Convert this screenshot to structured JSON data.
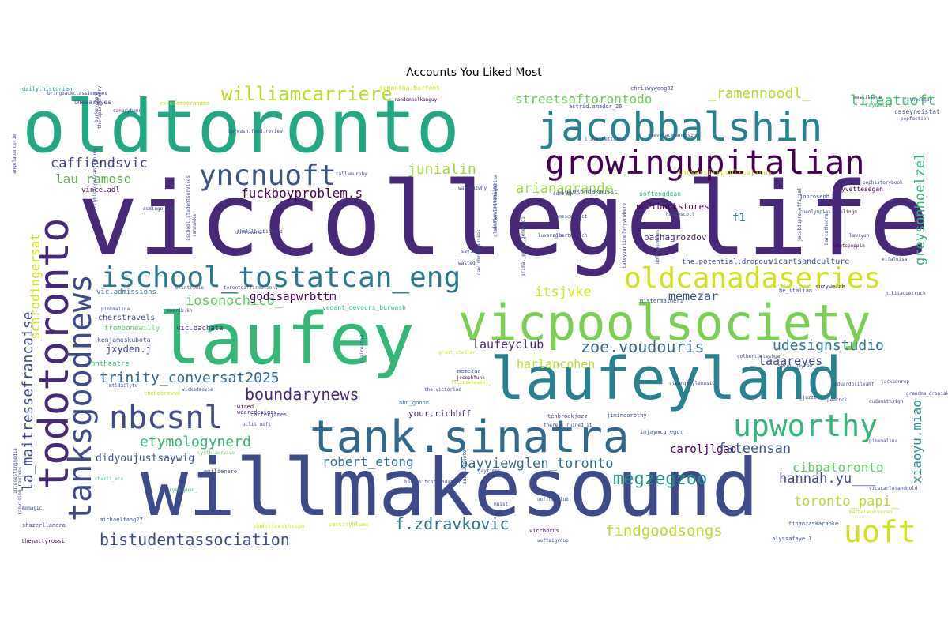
{
  "title": "Accounts You Liked Most",
  "words": [
    {
      "text": "viccollegelife",
      "color": "#482878"
    },
    {
      "text": "willmakesound",
      "color": "#3e4a89"
    },
    {
      "text": "oldtoronto",
      "color": "#22a884"
    },
    {
      "text": "laufey",
      "color": "#35b779"
    },
    {
      "text": "laufeyland",
      "color": "#26828e"
    },
    {
      "text": "vicpoolsociety",
      "color": "#7ad151"
    },
    {
      "text": "todotoronto",
      "color": "#482878"
    },
    {
      "text": "tank.sinatra",
      "color": "#31688e"
    },
    {
      "text": "jacobbalshin",
      "color": "#26828e"
    },
    {
      "text": "growingupitalian",
      "color": "#440154"
    },
    {
      "text": "tanksgoodnews",
      "color": "#3e4a89"
    },
    {
      "text": "nbcsnl",
      "color": "#3e4a89"
    },
    {
      "text": "ischool_tostatcan_eng",
      "color": "#2a788e"
    },
    {
      "text": "oldcanadaseries",
      "color": "#d2e21b"
    },
    {
      "text": "yncnuoft",
      "color": "#3b528b"
    },
    {
      "text": "upworthy",
      "color": "#35b779"
    },
    {
      "text": "uoft",
      "color": "#d2e21b"
    },
    {
      "text": "williamcarriere",
      "color": "#b5de2b"
    },
    {
      "text": "streetsoftorontodo",
      "color": "#6ece58"
    },
    {
      "text": "_ramennoodl_",
      "color": "#b5de2b"
    },
    {
      "text": "lifeatuoft",
      "color": "#4ac16d"
    },
    {
      "text": "caffiendsvic",
      "color": "#414487"
    },
    {
      "text": "lau_ramoso",
      "color": "#65b35b"
    },
    {
      "text": "fuckboyproblem.s",
      "color": "#440154"
    },
    {
      "text": "junialin",
      "color": "#a0da39"
    },
    {
      "text": "arianagrande",
      "color": "#a0da39"
    },
    {
      "text": "greysonhoelzel",
      "color": "#35b779"
    },
    {
      "text": "f1",
      "color": "#2c728e"
    },
    {
      "text": "la_maitressefrancaise",
      "color": "#3e4a89"
    },
    {
      "text": "schrodingersat",
      "color": "#d2e21b"
    },
    {
      "text": "iosonochico_",
      "color": "#5ec962"
    },
    {
      "text": "godisapwrbttm",
      "color": "#440154"
    },
    {
      "text": "itsjvke",
      "color": "#d2e21b"
    },
    {
      "text": "memezar",
      "color": "#3b528b"
    },
    {
      "text": "xiaoyu.miao",
      "color": "#21918c"
    },
    {
      "text": "trinity_conversat2025",
      "color": "#31688e"
    },
    {
      "text": "laufeyclub",
      "color": "#482878"
    },
    {
      "text": "zoe.voudouris",
      "color": "#31688e"
    },
    {
      "text": "udesignstudio",
      "color": "#2a788e"
    },
    {
      "text": "boundarynews",
      "color": "#482878"
    },
    {
      "text": "harlancohen",
      "color": "#b5de2b"
    },
    {
      "text": "laaareyes",
      "color": "#414487"
    },
    {
      "text": "etymologynerd",
      "color": "#35b779"
    },
    {
      "text": "didyoujustsaywig",
      "color": "#3b528b"
    },
    {
      "text": "robert_etong",
      "color": "#2c728e"
    },
    {
      "text": "bayviewglen_toronto",
      "color": "#31688e"
    },
    {
      "text": "caroljlgao",
      "color": "#440154"
    },
    {
      "text": "fateensan",
      "color": "#3b528b"
    },
    {
      "text": "megzegzoo",
      "color": "#21918c"
    },
    {
      "text": "cibpatoronto",
      "color": "#5ec962"
    },
    {
      "text": "hannah.yu___",
      "color": "#3e4a89"
    },
    {
      "text": "toronto_papi_",
      "color": "#b5de2b"
    },
    {
      "text": "findgoodsongs",
      "color": "#b5de2b"
    },
    {
      "text": "f.zdravkovic",
      "color": "#2a788e"
    },
    {
      "text": "bistudentassociation",
      "color": "#3e4a89"
    },
    {
      "text": "jxyden.j",
      "color": "#414487"
    },
    {
      "text": "your.richbff",
      "color": "#482878"
    },
    {
      "text": "lukekondakmusic",
      "color": "#3b528b"
    },
    {
      "text": "uoftbookstores",
      "color": "#440154"
    },
    {
      "text": "pashagrozdov",
      "color": "#482878"
    },
    {
      "text": "vicartsandculture",
      "color": "#3b528b"
    },
    {
      "text": "the.potential.dropout",
      "color": "#3e4a89"
    },
    {
      "text": "vedant_devours_burwash",
      "color": "#35b779"
    },
    {
      "text": "cherstravels",
      "color": "#3e4a89"
    },
    {
      "text": "vic.admissions",
      "color": "#2c728e"
    },
    {
      "text": "vic.bachata",
      "color": "#482878"
    },
    {
      "text": "trombonewilly",
      "color": "#5ec962"
    },
    {
      "text": "kenjameskubota",
      "color": "#3b528b"
    },
    {
      "text": "hhtheatre",
      "color": "#35b779"
    },
    {
      "text": "vince.adl",
      "color": "#440154"
    },
    {
      "text": "uoftengdean",
      "color": "#35b779"
    },
    {
      "text": "thevarsitypublications",
      "color": "#d2e21b"
    },
    {
      "text": "yvettesegan",
      "color": "#440154"
    },
    {
      "text": "popfaction",
      "color": "#3e4a89"
    },
    {
      "text": "caseyneistat",
      "color": "#3b528b"
    },
    {
      "text": "raydalio",
      "color": "#35b779"
    },
    {
      "text": "theaareyes",
      "color": "#3e4a89"
    },
    {
      "text": "canarybenn",
      "color": "#482878"
    },
    {
      "text": "excusemygrandma",
      "color": "#d2e21b"
    },
    {
      "text": "daily.historian",
      "color": "#21918c"
    },
    {
      "text": "samantha.barfoot",
      "color": "#d2e21b"
    },
    {
      "text": "chriswywong02",
      "color": "#3e4a89"
    },
    {
      "text": "astrid.amador_26",
      "color": "#3e4a89"
    },
    {
      "text": "randombalkanguy",
      "color": "#440154"
    },
    {
      "text": "mistermainer1",
      "color": "#3b528b"
    },
    {
      "text": "suzywelch",
      "color": "#482878"
    },
    {
      "text": "nikitaduetruck",
      "color": "#3e4a89"
    },
    {
      "text": "be_italian",
      "color": "#3b528b"
    },
    {
      "text": "memezar",
      "color": "#3b528b"
    },
    {
      "text": "grant_steller",
      "color": "#d2e21b"
    },
    {
      "text": "colbertlateshow",
      "color": "#3e4a89"
    },
    {
      "text": "selen_bayram_",
      "color": "#3b528b"
    },
    {
      "text": "filipzalewski_",
      "color": "#d2e21b"
    },
    {
      "text": "_josephfunk",
      "color": "#440154"
    },
    {
      "text": "the.victoriad",
      "color": "#3e4a89"
    },
    {
      "text": "ahn_gooon",
      "color": "#2c728e"
    },
    {
      "text": "wearedesignx",
      "color": "#482878"
    },
    {
      "text": "tenbroekjazz",
      "color": "#414487"
    },
    {
      "text": "jimindorothy",
      "color": "#3e4a89"
    },
    {
      "text": "imjaymcgregor",
      "color": "#3e4a89"
    },
    {
      "text": "uclit_uoft",
      "color": "#3e4a89"
    },
    {
      "text": "cynthiaervivo",
      "color": "#5ec962"
    },
    {
      "text": "emilienero",
      "color": "#3e4a89"
    },
    {
      "text": "charli_xcx",
      "color": "#35b779"
    },
    {
      "text": "carterjames",
      "color": "#3e4a89"
    },
    {
      "text": "wired",
      "color": "#440154"
    },
    {
      "text": "thebobrevue",
      "color": "#d2e21b"
    },
    {
      "text": "ryan.yuen_",
      "color": "#35b779"
    },
    {
      "text": "dudettewithsign",
      "color": "#d2e21b"
    },
    {
      "text": "varsityblues",
      "color": "#d2e21b"
    },
    {
      "text": "vicchorus",
      "color": "#440154"
    },
    {
      "text": "uoftaigroup",
      "color": "#3e4a89"
    },
    {
      "text": "finanzaskaraoke",
      "color": "#3b528b"
    },
    {
      "text": "alyssafaye.1",
      "color": "#3b528b"
    },
    {
      "text": "barbaracorcoran",
      "color": "#b5de2b"
    },
    {
      "text": "vicscarletandgold",
      "color": "#3b528b"
    },
    {
      "text": "michaelfang27",
      "color": "#3b528b"
    },
    {
      "text": "shazerllanera",
      "color": "#3e4a89"
    },
    {
      "text": "themattyrossi",
      "color": "#440154"
    },
    {
      "text": "momagic",
      "color": "#3e4a89"
    },
    {
      "text": "jobroseph",
      "color": "#3e4a89"
    },
    {
      "text": "cheolympics",
      "color": "#3e4a89"
    },
    {
      "text": "duolingo",
      "color": "#482878"
    },
    {
      "text": "whatspoppin",
      "color": "#440154"
    },
    {
      "text": "lawryun",
      "color": "#3e4a89"
    },
    {
      "text": "etfaleisa",
      "color": "#3e4a89"
    },
    {
      "text": "pophistorybook",
      "color": "#3e4a89"
    },
    {
      "text": "uoftrunclub",
      "color": "#3b528b"
    },
    {
      "text": "luvevrgrn",
      "color": "#3e4a89"
    },
    {
      "text": "edmclip",
      "color": "#3e4a89"
    },
    {
      "text": "uofttears",
      "color": "#3e4a89"
    },
    {
      "text": "erintridle",
      "color": "#3e4a89"
    },
    {
      "text": "torontoaffirmations",
      "color": "#3e4a89"
    },
    {
      "text": "burwash.food.review",
      "color": "#3e4a89"
    },
    {
      "text": "ilovethettc102",
      "color": "#3e4a89"
    },
    {
      "text": "stevehackmanmusic",
      "color": "#3e4a89"
    },
    {
      "text": "halanscott",
      "color": "#3e4a89"
    },
    {
      "text": "maarib.kh",
      "color": "#3e4a89"
    },
    {
      "text": "pinkmalina",
      "color": "#3e4a89"
    },
    {
      "text": "dudemithsign",
      "color": "#3e4a89"
    },
    {
      "text": "jacksonrep",
      "color": "#3e4a89"
    },
    {
      "text": "peacock",
      "color": "#3e4a89"
    },
    {
      "text": "eduardosilvamf",
      "color": "#3e4a89"
    },
    {
      "text": "jjazze",
      "color": "#3e4a89"
    },
    {
      "text": "grandma_droniak",
      "color": "#3e4a89"
    },
    {
      "text": "strangekylemusic",
      "color": "#3e4a89"
    },
    {
      "text": "muist",
      "color": "#3e4a89"
    },
    {
      "text": "gaytimes",
      "color": "#3e4a89"
    },
    {
      "text": "nemyaa",
      "color": "#3e4a89"
    },
    {
      "text": "basicbitchfoundation",
      "color": "#3e4a89"
    },
    {
      "text": "interestingmedia",
      "color": "#3e4a89"
    },
    {
      "text": "ranvision_remixes",
      "color": "#3e4a89"
    },
    {
      "text": "mtldailytv",
      "color": "#3e4a89"
    },
    {
      "text": "wickedmovie",
      "color": "#3e4a89"
    },
    {
      "text": "thearchbishopofcanterbury",
      "color": "#3e4a89"
    },
    {
      "text": "ischool.studentservices",
      "color": "#3e4a89"
    },
    {
      "text": "classfavouritemagazine",
      "color": "#3e4a89"
    },
    {
      "text": "primal_edges_generici",
      "color": "#3e4a89"
    },
    {
      "text": "takeyourtimeferyvrwbere",
      "color": "#3e4a89"
    },
    {
      "text": "uoftcatmemes",
      "color": "#3e4a89"
    },
    {
      "text": "jacobdupre_official",
      "color": "#3e4a89"
    },
    {
      "text": "barcathedral",
      "color": "#3e4a89"
    },
    {
      "text": "davidbroskauskas",
      "color": "#3e4a89"
    },
    {
      "text": "designteamonline",
      "color": "#3e4a89"
    },
    {
      "text": "clairesto9",
      "color": "#3e4a89"
    },
    {
      "text": "austl37photo",
      "color": "#3e4a89"
    },
    {
      "text": "sammakkar",
      "color": "#3e4a89"
    },
    {
      "text": "burkeychen",
      "color": "#3e4a89"
    },
    {
      "text": "therapistsfurry",
      "color": "#3e4a89"
    },
    {
      "text": "angelapancerie",
      "color": "#3e4a89"
    },
    {
      "text": "waitbutwhy",
      "color": "#3e4a89"
    },
    {
      "text": "_say.her",
      "color": "#3e4a89"
    },
    {
      "text": "wasted",
      "color": "#3e4a89"
    },
    {
      "text": "memescollect",
      "color": "#3e4a89"
    },
    {
      "text": "alberto.tech",
      "color": "#3e4a89"
    },
    {
      "text": "there_s_ruined_it",
      "color": "#3e4a89"
    },
    {
      "text": "thelilbitbigband",
      "color": "#3e4a89"
    },
    {
      "text": "dsdingo_eda",
      "color": "#3e4a89"
    },
    {
      "text": "bringbackclassiememes",
      "color": "#3e4a89"
    },
    {
      "text": "callemurphy",
      "color": "#3e4a89"
    },
    {
      "text": "vassillege",
      "color": "#3e4a89"
    },
    {
      "text": "fitnessgay",
      "color": "#3e4a89"
    },
    {
      "text": "pinkmalina",
      "color": "#3e4a89"
    }
  ]
}
